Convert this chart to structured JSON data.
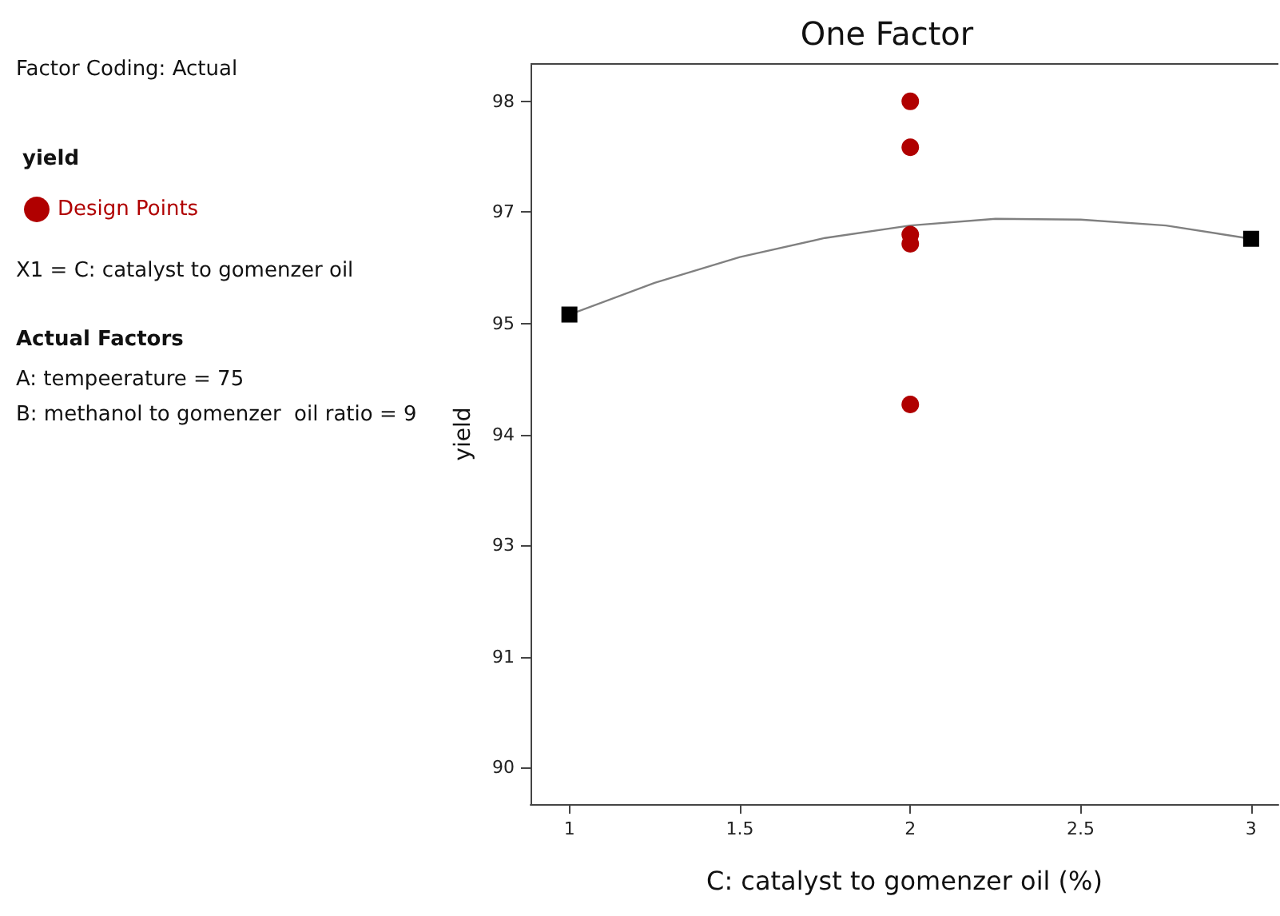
{
  "chart_data": {
    "type": "scatter",
    "title": "One Factor",
    "xlabel": "C: catalyst to gomenzer oil (%)",
    "ylabel": "yield",
    "legend_title": "yield",
    "annotations": [
      "Factor Coding: Actual",
      "X1 = C: catalyst to gomenzer oil",
      "Actual Factors",
      "A: tempeerature = 75",
      "B: methanol to gomenzer  oil ratio = 9"
    ],
    "xlim": [
      0.886,
      3.08
    ],
    "xticks": [
      1,
      1.5,
      2,
      2.5,
      3
    ],
    "ylim": [
      89.56,
      98.45
    ],
    "yticks": [
      98,
      {
        "value": 96.67,
        "label": "97"
      },
      {
        "value": 95.33,
        "label": "95"
      },
      94,
      {
        "value": 92.67,
        "label": "93"
      },
      {
        "value": 91.33,
        "label": "91"
      },
      90
    ],
    "grid": false,
    "legend": "top left",
    "series": [
      {
        "name": "Design Points",
        "marker": "circle",
        "color": "#b00000",
        "x": [
          2,
          2,
          2,
          2,
          2
        ],
        "values": [
          98,
          97.45,
          96.4,
          96.29,
          94.36
        ]
      },
      {
        "type": "line",
        "marker": "none",
        "color": "#808080",
        "x": [
          1,
          1.25,
          1.5,
          1.75,
          2,
          2.25,
          2.5,
          2.75,
          3
        ],
        "values": [
          95.44,
          95.82,
          96.13,
          96.36,
          96.51,
          96.59,
          96.58,
          96.51,
          96.35
        ]
      },
      {
        "marker": "square",
        "color": "#000000",
        "x": [
          1,
          3
        ],
        "values": [
          95.44,
          96.35
        ]
      }
    ]
  }
}
